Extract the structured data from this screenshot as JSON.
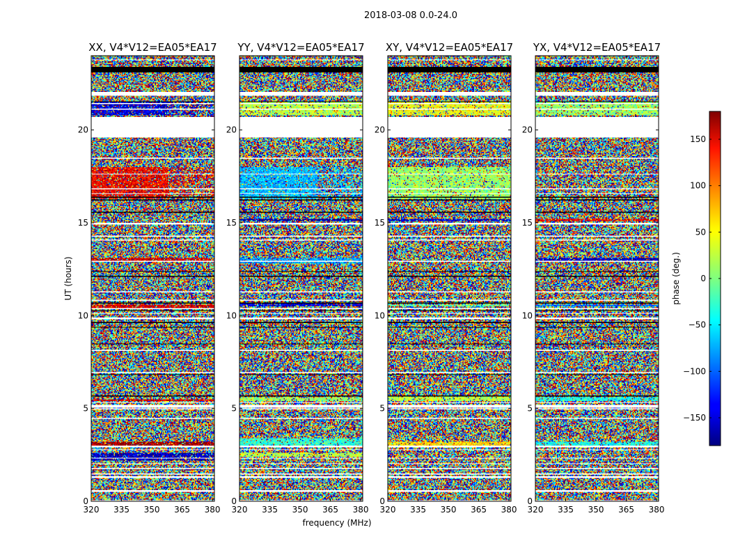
{
  "chart_data": {
    "type": "heatmap",
    "title": "2018-03-08 0.0-24.0",
    "colorscale": "jet",
    "xlabel": "frequency (MHz)",
    "ylabel": "UT (hours)",
    "xlim": [
      320,
      381
    ],
    "ylim": [
      0,
      24
    ],
    "xticks": [
      "320",
      "335",
      "350",
      "365",
      "380"
    ],
    "yticks": [
      "0",
      "5",
      "10",
      "15",
      "20"
    ],
    "colorbar": {
      "label": "phase (deg.)",
      "range": [
        -180,
        180
      ],
      "ticks": [
        "150",
        "100",
        "50",
        "0",
        "−50",
        "−100",
        "−150"
      ]
    },
    "flagged_ut_ranges": [
      [
        19.6,
        20.7
      ],
      [
        21.85,
        22.0
      ],
      [
        14.9,
        15.0
      ],
      [
        9.8,
        9.9
      ],
      [
        5.05,
        5.2
      ],
      [
        2.9,
        3.0
      ],
      [
        1.25,
        1.35
      ],
      [
        0.5,
        0.6
      ]
    ],
    "panels": [
      {
        "title": "XX, V4*V12=EA05*EA17",
        "dominant_phase": [
          {
            "ut": [
              20.8,
              21.5
            ],
            "phase": -150,
            "note": "blue band, lower frequencies"
          },
          {
            "ut": [
              16.3,
              18.0
            ],
            "phase": 140,
            "note": "red band, lower frequencies"
          },
          {
            "ut": [
              12.9,
              13.1
            ],
            "phase": 150
          },
          {
            "ut": [
              10.4,
              10.6
            ],
            "phase": 150
          },
          {
            "ut": [
              5.4,
              5.5
            ],
            "phase": 150
          },
          {
            "ut": [
              2.9,
              3.2
            ],
            "phase": 170
          },
          {
            "ut": [
              2.2,
              2.6
            ],
            "phase": -160
          }
        ]
      },
      {
        "title": "YY, V4*V12=EA05*EA17",
        "dominant_phase": [
          {
            "ut": [
              20.8,
              21.5
            ],
            "phase": 20,
            "note": "green band"
          },
          {
            "ut": [
              16.3,
              18.0
            ],
            "phase": -70,
            "note": "cyan band, lower frequencies"
          },
          {
            "ut": [
              15.1,
              15.2
            ],
            "phase": -170
          },
          {
            "ut": [
              12.8,
              13.1
            ],
            "phase": -80
          },
          {
            "ut": [
              10.5,
              10.7
            ],
            "phase": -150
          },
          {
            "ut": [
              5.4,
              5.6
            ],
            "phase": 10
          },
          {
            "ut": [
              3.0,
              3.4
            ],
            "phase": -30
          },
          {
            "ut": [
              2.4,
              2.6
            ],
            "phase": 20
          }
        ]
      },
      {
        "title": "XY, V4*V12=EA05*EA17",
        "dominant_phase": [
          {
            "ut": [
              20.8,
              21.5
            ],
            "phase": 40,
            "note": "mixed yellow/red"
          },
          {
            "ut": [
              16.3,
              18.0
            ],
            "phase": 10,
            "note": "mixed green/yellow"
          },
          {
            "ut": [
              15.1,
              15.2
            ],
            "phase": -150
          },
          {
            "ut": [
              10.5,
              10.6
            ],
            "phase": -10
          },
          {
            "ut": [
              5.4,
              5.7
            ],
            "phase": 20
          },
          {
            "ut": [
              2.9,
              3.2
            ],
            "phase": 60
          }
        ]
      },
      {
        "title": "YX, V4*V12=EA05*EA17",
        "dominant_phase": [
          {
            "ut": [
              20.8,
              21.5
            ],
            "phase": 10,
            "note": "mixed"
          },
          {
            "ut": [
              15.1,
              15.2
            ],
            "phase": 140
          },
          {
            "ut": [
              12.9,
              13.1
            ],
            "phase": -160
          },
          {
            "ut": [
              10.5,
              10.6
            ],
            "phase": -100
          },
          {
            "ut": [
              5.4,
              5.6
            ],
            "phase": -40
          },
          {
            "ut": [
              3.0,
              3.2
            ],
            "phase": -40
          }
        ]
      }
    ]
  }
}
